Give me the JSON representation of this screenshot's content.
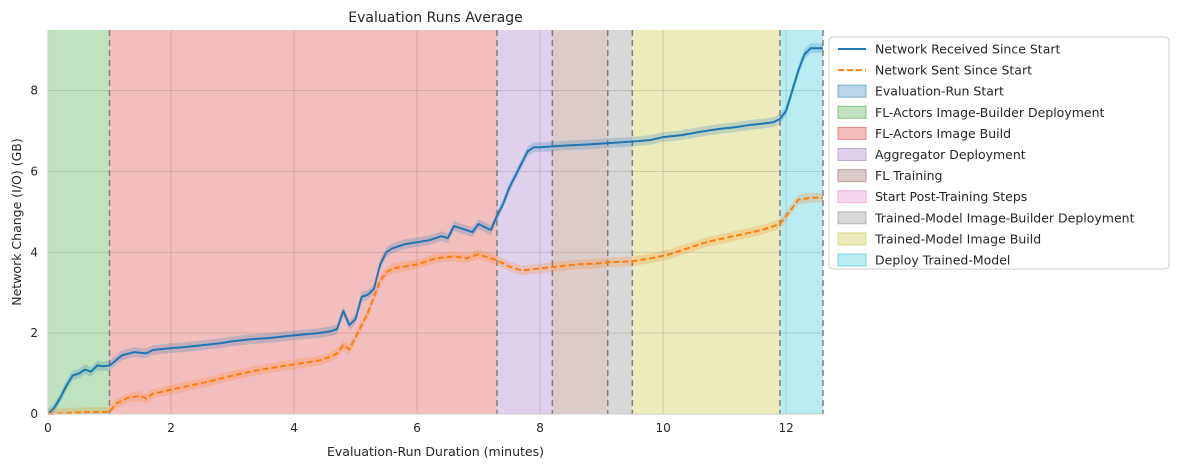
{
  "chart_data": {
    "type": "line",
    "title": "Evaluation Runs Average",
    "xlabel": "Evaluation-Run Duration (minutes)",
    "ylabel": "Network Change (I/O) (GB)",
    "xlim": [
      0,
      12.6
    ],
    "ylim": [
      0,
      9.5
    ],
    "xticks": [
      0,
      2,
      4,
      6,
      8,
      10,
      12
    ],
    "yticks": [
      0,
      2,
      4,
      6,
      8
    ],
    "grid": true,
    "legend_position": "outside-right",
    "phases": [
      {
        "name": "Evaluation-Run Start",
        "start": 0,
        "end": 0,
        "color": "#1f77b4"
      },
      {
        "name": "FL-Actors Image-Builder Deployment",
        "start": 0,
        "end": 1.0,
        "color": "#2ca02c"
      },
      {
        "name": "FL-Actors Image Build",
        "start": 1.0,
        "end": 7.3,
        "color": "#d62728"
      },
      {
        "name": "Aggregator Deployment",
        "start": 7.3,
        "end": 8.2,
        "color": "#9467bd"
      },
      {
        "name": "FL Training",
        "start": 8.2,
        "end": 9.1,
        "color": "#8c564b"
      },
      {
        "name": "Start Post-Training Steps",
        "start": 9.1,
        "end": 9.1,
        "color": "#e377c2"
      },
      {
        "name": "Trained-Model Image-Builder Deployment",
        "start": 9.1,
        "end": 9.5,
        "color": "#7f7f7f"
      },
      {
        "name": "Trained-Model Image Build",
        "start": 9.5,
        "end": 11.9,
        "color": "#bcbd22"
      },
      {
        "name": "Deploy Trained-Model",
        "start": 11.9,
        "end": 12.6,
        "color": "#17becf"
      }
    ],
    "boundaries": [
      1.0,
      7.3,
      8.2,
      9.1,
      9.5,
      11.9,
      12.6
    ],
    "series": [
      {
        "name": "Network Received Since Start",
        "color": "#1f77b4",
        "dash": "solid",
        "x": [
          0,
          0.1,
          0.2,
          0.3,
          0.4,
          0.5,
          0.6,
          0.7,
          0.8,
          0.9,
          1.0,
          1.1,
          1.2,
          1.4,
          1.6,
          1.7,
          1.8,
          2.0,
          2.2,
          2.5,
          2.8,
          3.0,
          3.3,
          3.6,
          3.9,
          4.1,
          4.4,
          4.6,
          4.7,
          4.8,
          4.9,
          5.0,
          5.1,
          5.2,
          5.3,
          5.4,
          5.5,
          5.6,
          5.8,
          6.0,
          6.2,
          6.4,
          6.5,
          6.6,
          6.8,
          6.9,
          7.0,
          7.2,
          7.3,
          7.4,
          7.5,
          7.6,
          7.7,
          7.8,
          7.9,
          8.0,
          8.2,
          8.5,
          8.8,
          9.1,
          9.3,
          9.5,
          9.8,
          10.0,
          10.3,
          10.6,
          10.9,
          11.2,
          11.4,
          11.6,
          11.8,
          11.9,
          12.0,
          12.1,
          12.2,
          12.3,
          12.4,
          12.6
        ],
        "y": [
          0,
          0.15,
          0.4,
          0.7,
          0.95,
          1.0,
          1.1,
          1.05,
          1.2,
          1.18,
          1.2,
          1.32,
          1.45,
          1.53,
          1.5,
          1.58,
          1.6,
          1.63,
          1.65,
          1.7,
          1.75,
          1.8,
          1.85,
          1.88,
          1.93,
          1.96,
          2.0,
          2.05,
          2.1,
          2.55,
          2.2,
          2.35,
          2.9,
          2.95,
          3.1,
          3.7,
          4.0,
          4.1,
          4.2,
          4.25,
          4.3,
          4.4,
          4.35,
          4.65,
          4.55,
          4.5,
          4.7,
          4.55,
          4.9,
          5.2,
          5.6,
          5.9,
          6.2,
          6.5,
          6.6,
          6.6,
          6.62,
          6.65,
          6.67,
          6.7,
          6.72,
          6.74,
          6.78,
          6.85,
          6.9,
          6.98,
          7.05,
          7.1,
          7.15,
          7.18,
          7.22,
          7.3,
          7.5,
          8.0,
          8.5,
          8.9,
          9.05,
          9.05
        ]
      },
      {
        "name": "Network Sent Since Start",
        "color": "#ff7f0e",
        "dash": "dashed",
        "x": [
          0,
          0.2,
          0.5,
          0.8,
          1.0,
          1.1,
          1.3,
          1.5,
          1.6,
          1.7,
          2.0,
          2.3,
          2.6,
          3.0,
          3.4,
          3.8,
          4.1,
          4.4,
          4.6,
          4.7,
          4.8,
          4.9,
          5.0,
          5.1,
          5.2,
          5.3,
          5.4,
          5.5,
          5.6,
          5.8,
          6.0,
          6.3,
          6.6,
          6.8,
          7.0,
          7.3,
          7.5,
          7.7,
          8.0,
          8.3,
          8.6,
          8.9,
          9.1,
          9.5,
          9.8,
          10.1,
          10.4,
          10.7,
          11.0,
          11.3,
          11.6,
          11.9,
          12.0,
          12.1,
          12.2,
          12.4,
          12.6
        ],
        "y": [
          0,
          0.02,
          0.04,
          0.05,
          0.05,
          0.25,
          0.4,
          0.45,
          0.38,
          0.5,
          0.6,
          0.7,
          0.8,
          0.95,
          1.08,
          1.18,
          1.25,
          1.32,
          1.42,
          1.5,
          1.7,
          1.6,
          1.9,
          2.2,
          2.5,
          2.9,
          3.3,
          3.5,
          3.6,
          3.65,
          3.7,
          3.85,
          3.9,
          3.85,
          3.95,
          3.8,
          3.65,
          3.55,
          3.6,
          3.65,
          3.7,
          3.72,
          3.75,
          3.78,
          3.85,
          3.95,
          4.1,
          4.25,
          4.35,
          4.45,
          4.55,
          4.7,
          4.9,
          5.1,
          5.3,
          5.35,
          5.35
        ]
      }
    ]
  }
}
